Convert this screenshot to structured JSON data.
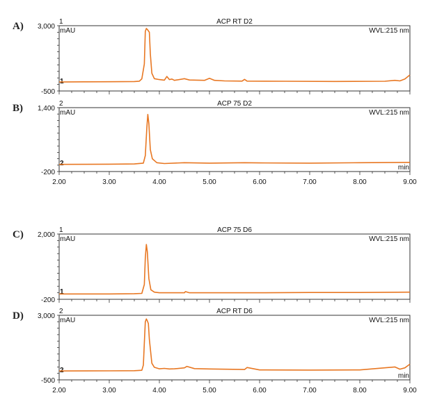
{
  "chart_data": [
    {
      "type": "line",
      "panel": "A)",
      "title": "ACP RT D2",
      "channel_top": "1",
      "channel_base": "1",
      "yunit": "mAU",
      "wavelength": "WVL:215 nm",
      "ylim": [
        -500,
        3000
      ],
      "ytick_labels": [
        "3,000",
        "-500"
      ],
      "xlim": [
        2.0,
        9.0
      ],
      "show_x_labels": false,
      "line_color": "#e87722",
      "series": [
        {
          "x": [
            2.0,
            2.5,
            3.0,
            3.5,
            3.6,
            3.65,
            3.7,
            3.72,
            3.74,
            3.76,
            3.8,
            3.82,
            3.85,
            3.9,
            4.0,
            4.1,
            4.15,
            4.2,
            4.25,
            4.3,
            4.5,
            4.6,
            4.9,
            5.0,
            5.1,
            5.3,
            5.65,
            5.7,
            5.75,
            6.5,
            7.5,
            8.5,
            8.7,
            8.8,
            8.9,
            9.0
          ],
          "y": [
            -20,
            -10,
            -5,
            5,
            25,
            150,
            950,
            2700,
            2850,
            2800,
            2650,
            1500,
            450,
            160,
            110,
            80,
            280,
            110,
            140,
            70,
            160,
            90,
            70,
            180,
            70,
            40,
            30,
            120,
            30,
            20,
            10,
            20,
            70,
            40,
            140,
            360
          ]
        }
      ]
    },
    {
      "type": "line",
      "panel": "B)",
      "title": "ACP 75 D2",
      "channel_top": "2",
      "channel_base": "2",
      "yunit": "mAU",
      "wavelength": "WVL:215 nm",
      "ylim": [
        -200,
        1400
      ],
      "ytick_labels": [
        "1,400",
        "-200"
      ],
      "xlim": [
        2.0,
        9.0
      ],
      "xunit": "min",
      "show_x_labels": true,
      "xtick_labels": [
        "2.00",
        "3.00",
        "4.00",
        "5.00",
        "6.00",
        "7.00",
        "8.00",
        "9.00"
      ],
      "line_color": "#e87722",
      "series": [
        {
          "x": [
            2.0,
            3.0,
            3.5,
            3.68,
            3.72,
            3.75,
            3.77,
            3.79,
            3.82,
            3.86,
            3.95,
            4.1,
            4.5,
            5.0,
            5.7,
            6.0,
            7.0,
            8.0,
            9.0
          ],
          "y": [
            -20,
            -15,
            -10,
            10,
            200,
            900,
            1230,
            1000,
            350,
            120,
            20,
            0,
            20,
            10,
            20,
            15,
            10,
            20,
            30
          ]
        }
      ]
    },
    {
      "type": "line",
      "panel": "C)",
      "title": "ACP 75 D6",
      "channel_top": "1",
      "channel_base": "1",
      "yunit": "mAU",
      "wavelength": "WVL:215 nm",
      "ylim": [
        -200,
        2000
      ],
      "ytick_labels": [
        "2,000",
        "-200"
      ],
      "xlim": [
        2.0,
        9.0
      ],
      "show_x_labels": false,
      "line_color": "#e87722",
      "series": [
        {
          "x": [
            2.0,
            3.0,
            3.5,
            3.65,
            3.7,
            3.72,
            3.74,
            3.76,
            3.79,
            3.83,
            3.9,
            4.0,
            4.5,
            4.52,
            4.6,
            5.0,
            6.0,
            7.0,
            8.0,
            9.0
          ],
          "y": [
            -20,
            -20,
            -10,
            0,
            300,
            1200,
            1650,
            1400,
            500,
            120,
            40,
            20,
            20,
            60,
            20,
            20,
            20,
            30,
            30,
            40
          ]
        }
      ]
    },
    {
      "type": "line",
      "panel": "D)",
      "title": "ACP RT D6",
      "channel_top": "2",
      "channel_base": "2",
      "yunit": "mAU",
      "wavelength": "WVL:215 nm",
      "ylim": [
        -500,
        3000
      ],
      "ytick_labels": [
        "3,000",
        "-500"
      ],
      "xlim": [
        2.0,
        9.0
      ],
      "xunit": "min",
      "show_x_labels": true,
      "xtick_labels": [
        "2.00",
        "3.00",
        "4.00",
        "5.00",
        "6.00",
        "7.00",
        "8.00",
        "9.00"
      ],
      "line_color": "#e87722",
      "series": [
        {
          "x": [
            2.0,
            3.0,
            3.5,
            3.65,
            3.68,
            3.7,
            3.72,
            3.74,
            3.76,
            3.78,
            3.8,
            3.85,
            3.9,
            4.0,
            4.1,
            4.2,
            4.3,
            4.5,
            4.55,
            4.7,
            5.0,
            5.7,
            5.75,
            6.0,
            7.0,
            8.0,
            8.7,
            8.8,
            8.9,
            9.0
          ],
          "y": [
            -20,
            -10,
            -5,
            20,
            300,
            1500,
            2650,
            2800,
            2700,
            2550,
            1700,
            400,
            180,
            100,
            120,
            90,
            100,
            150,
            230,
            110,
            90,
            60,
            170,
            40,
            30,
            40,
            200,
            80,
            150,
            350
          ]
        }
      ]
    }
  ]
}
